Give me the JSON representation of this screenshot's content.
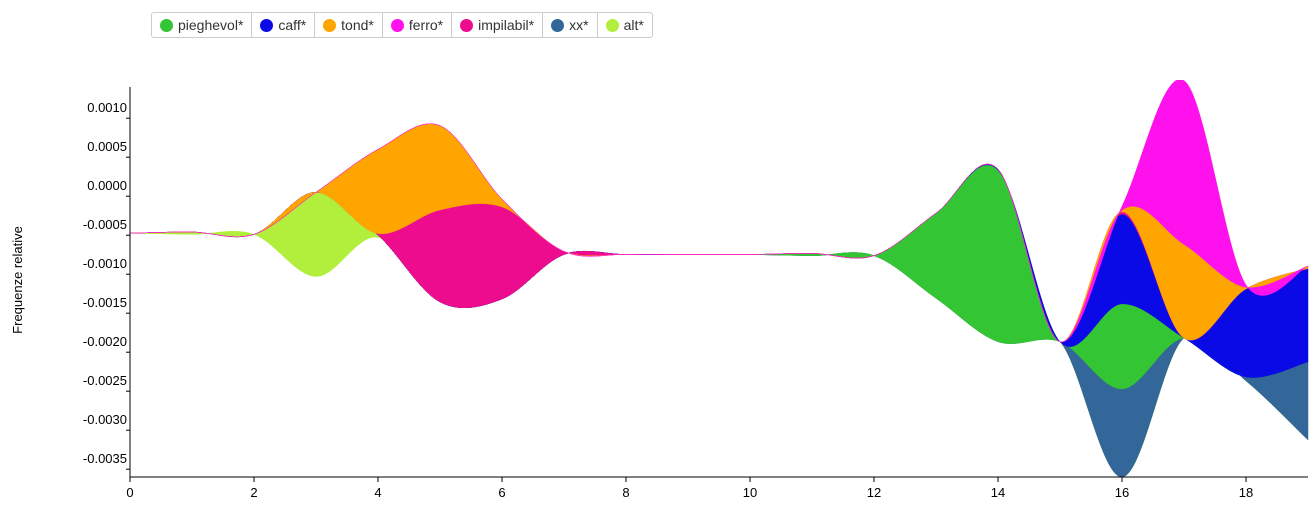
{
  "chart_data": {
    "type": "streamgraph",
    "y_label": "Frequenze relative",
    "x": [
      0,
      1,
      2,
      3,
      4,
      5,
      6,
      7,
      8,
      9,
      10,
      11,
      12,
      13,
      14,
      15,
      16,
      17,
      18,
      19
    ],
    "xlim": [
      0,
      19
    ],
    "xticks": [
      0,
      2,
      4,
      6,
      8,
      10,
      12,
      14,
      16,
      18
    ],
    "ylim": [
      -0.0036,
      0.0014
    ],
    "yticks": [
      {
        "value": 0.001,
        "label": "0.0010"
      },
      0.0005,
      {
        "value": 0,
        "label": "0.0000"
      },
      -0.0005,
      {
        "value": -0.001,
        "label": "-0.0010"
      },
      -0.0015,
      {
        "value": -0.002,
        "label": "-0.0020"
      },
      -0.0025,
      {
        "value": -0.003,
        "label": "-0.0030"
      },
      -0.0035
    ],
    "series": [
      {
        "name": "pieghevol*",
        "color": "#33c533",
        "values": [
          0,
          0,
          0,
          0,
          0,
          0,
          0,
          0,
          0,
          0,
          0,
          3e-05,
          0,
          0.00109,
          0.0022,
          0,
          0.00109,
          0,
          0,
          0
        ]
      },
      {
        "name": "caff*",
        "color": "#0a0ae6",
        "values": [
          0,
          0,
          0,
          0,
          0,
          0,
          0,
          0,
          0,
          0,
          0,
          0,
          0,
          0,
          1e-05,
          0,
          0.00115,
          0,
          0.00113,
          0.0012
        ]
      },
      {
        "name": "tond*",
        "color": "#ffa500",
        "values": [
          0,
          0,
          0,
          0,
          0.00108,
          0.00108,
          0.0001,
          0,
          0,
          0,
          0,
          0,
          0,
          0,
          0,
          0,
          2e-05,
          0.0012,
          2e-05,
          3e-05
        ]
      },
      {
        "name": "ferro*",
        "color": "#ff11ee",
        "values": [
          0,
          0,
          0,
          0,
          0,
          0,
          0,
          0,
          0,
          0,
          0,
          0,
          0,
          0,
          0,
          0,
          5e-05,
          0.0021,
          3e-05,
          0
        ]
      },
      {
        "name": "impilabil*",
        "color": "#ee0c8e",
        "values": [
          0,
          0,
          0,
          0,
          2e-05,
          0.00118,
          0.00118,
          4e-05,
          0,
          0,
          0,
          0,
          0,
          0,
          0,
          0,
          3e-05,
          0,
          0,
          0
        ]
      },
      {
        "name": "xx*",
        "color": "#336699",
        "values": [
          0,
          0,
          0,
          0,
          0,
          0,
          0,
          0,
          0,
          0,
          0,
          0,
          0,
          0,
          0,
          0,
          0.00113,
          0,
          5e-05,
          0.001
        ]
      },
      {
        "name": "alt*",
        "color": "#b2ef3c",
        "values": [
          0,
          3e-05,
          0,
          0.00108,
          3e-05,
          0,
          0,
          0,
          0,
          0,
          0,
          0,
          0,
          0,
          0,
          0,
          0,
          0,
          0,
          0
        ]
      }
    ]
  }
}
